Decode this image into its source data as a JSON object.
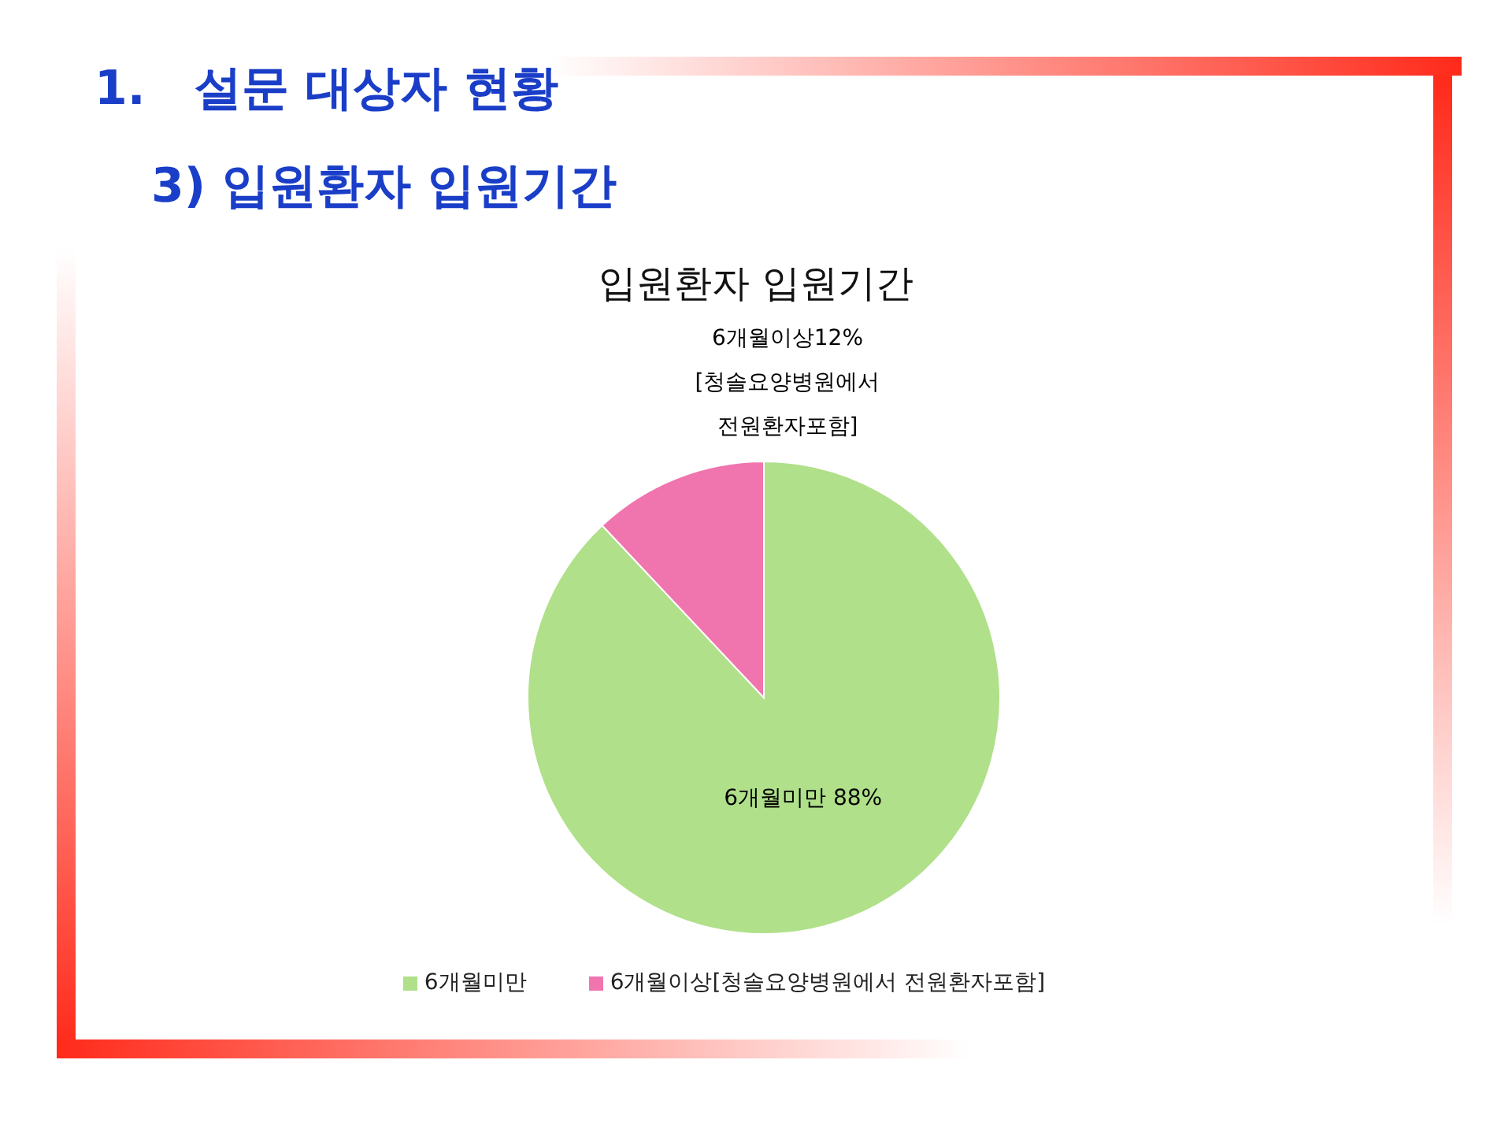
{
  "chart_data": {
    "type": "pie",
    "title": "입원환자 입원기간",
    "annotations": [
      "1.   설문 대상자 현황",
      "3) 입원환자 입원기간"
    ],
    "categories": [
      "6개월미만",
      "6개월이상[청솔요양병원에서 전원환자포함]"
    ],
    "values": [
      88,
      12
    ],
    "colors": [
      "#b0e08a",
      "#f075ae"
    ],
    "value_labels": [
      "6개월미만 88%",
      "6개월이상12% [청솔요양병원에서 전원환자포함]"
    ],
    "legend": "bottom"
  }
}
